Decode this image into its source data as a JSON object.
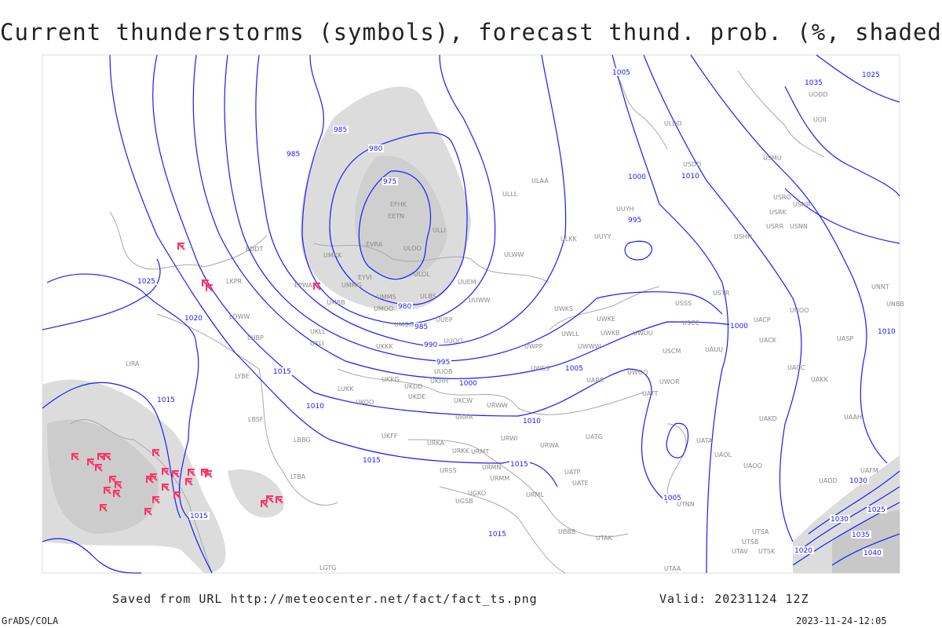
{
  "title": "Current thunderstorms (symbols), forecast thund. prob. (%, shaded)",
  "footer": {
    "source": "Saved from URL http://meteocenter.net/fact/fact_ts.png",
    "valid": "Valid: 20231124 12Z",
    "software": "GrADS/COLA",
    "timestamp": "2023-11-24-12:05"
  },
  "colors": {
    "isobar": "#1a1aff",
    "coastline": "#a0a0a0",
    "station_label": "#888888",
    "thunderstorm_symbol": "#ff3366",
    "probability_shading": "#d8d8d8"
  },
  "icons": {
    "thunderstorm": "thunderstorm-symbol-icon"
  },
  "isobar_labels": [
    "975",
    "980",
    "980",
    "985",
    "985",
    "985",
    "990",
    "995",
    "1000",
    "1000",
    "1005",
    "1005",
    "1005",
    "1010",
    "1010",
    "1010",
    "1010",
    "1015",
    "1015",
    "1015",
    "1015",
    "1015",
    "1020",
    "1025",
    "1025",
    "1030",
    "1030",
    "1035",
    "1035",
    "1040",
    "1025",
    "1020",
    "995",
    "1000",
    "1015"
  ],
  "stations": [
    "EFHK",
    "EETN",
    "EVRA",
    "ULOO",
    "ULLI",
    "ULOL",
    "UMKK",
    "EYVI",
    "UMMG",
    "UMBB",
    "ULBS",
    "UMMS",
    "UMOO",
    "UMGG",
    "UUEP",
    "UUEM",
    "UUWW",
    "ULWW",
    "ULAA",
    "ULLL",
    "UUYY",
    "ULKK",
    "UUYH",
    "USDD",
    "ULDD",
    "USMU",
    "UODD",
    "UOII",
    "USRO",
    "USRK",
    "USRR",
    "USNR",
    "USNN",
    "USHH",
    "USTR",
    "USSS",
    "UWKS",
    "UWKE",
    "UWLL",
    "UWKB",
    "UWUU",
    "UWWW",
    "UWPP",
    "UWSS",
    "UARR",
    "UWOO",
    "UWOR",
    "UATT",
    "USCC",
    "USCM",
    "UAUU",
    "UACP",
    "UACK",
    "UASP",
    "UACC",
    "UAKK",
    "UNOO",
    "UNNT",
    "UNBB",
    "UATG",
    "UATA",
    "UAOL",
    "UAOO",
    "UAKD",
    "UAAH",
    "UADD",
    "UAFM",
    "UATE",
    "UATP",
    "UTNN",
    "UTAK",
    "UTAA",
    "UTSA",
    "UTSB",
    "UTAV",
    "UTSK",
    "UBBB",
    "URWA",
    "URWI",
    "URMT",
    "URMN",
    "URMM",
    "URML",
    "URSS",
    "URKK",
    "URKA",
    "UKFF",
    "UGKO",
    "UGSB",
    "UKOO",
    "UKDE",
    "UKCW",
    "URRR",
    "URWW",
    "UKHH",
    "UKDD",
    "UKKG",
    "LUKK",
    "UKKK",
    "UUOO",
    "UUOB",
    "UKLL",
    "UKLI",
    "LHBP",
    "LOWW",
    "LKPR",
    "EPWA",
    "EDDT",
    "LBSF",
    "LBBG",
    "LIRA",
    "LYBE",
    "LGTG",
    "LTBA"
  ]
}
